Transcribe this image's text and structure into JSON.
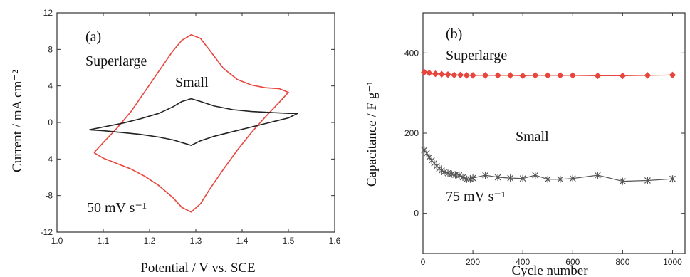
{
  "chart_data": [
    {
      "type": "line",
      "panel_label": "(a)",
      "xlabel": "Potential / V vs. SCE",
      "ylabel": "Current / mA cm⁻²",
      "xlim": [
        1.0,
        1.6
      ],
      "ylim": [
        -12,
        12
      ],
      "xticks": [
        "1.0",
        "1.1",
        "1.2",
        "1.3",
        "1.4",
        "1.5",
        "1.6"
      ],
      "yticks": [
        "-12",
        "-8",
        "-4",
        "0",
        "4",
        "8",
        "12"
      ],
      "grid": false,
      "annotations": {
        "superlarge": "Superlarge",
        "small": "Small",
        "scan_rate": "50 mV s⁻¹"
      },
      "series": [
        {
          "name": "Superlarge",
          "color": "#e8453c",
          "x": [
            1.08,
            1.1,
            1.13,
            1.16,
            1.19,
            1.22,
            1.25,
            1.27,
            1.29,
            1.31,
            1.33,
            1.36,
            1.39,
            1.42,
            1.45,
            1.48,
            1.5,
            1.48,
            1.45,
            1.42,
            1.39,
            1.36,
            1.33,
            1.31,
            1.29,
            1.27,
            1.25,
            1.22,
            1.19,
            1.16,
            1.13,
            1.1,
            1.08
          ],
          "y": [
            -3.3,
            -2.2,
            -0.6,
            1.2,
            3.4,
            5.6,
            7.8,
            9.0,
            9.6,
            9.2,
            7.9,
            5.9,
            4.7,
            4.1,
            3.8,
            3.7,
            3.3,
            2.2,
            0.6,
            -1.1,
            -3.0,
            -5.1,
            -7.3,
            -8.9,
            -9.8,
            -9.3,
            -8.2,
            -6.9,
            -5.9,
            -5.1,
            -4.5,
            -3.9,
            -3.3
          ]
        },
        {
          "name": "Small",
          "color": "#222222",
          "x": [
            1.07,
            1.1,
            1.14,
            1.18,
            1.22,
            1.25,
            1.27,
            1.29,
            1.31,
            1.34,
            1.38,
            1.42,
            1.46,
            1.5,
            1.52,
            1.5,
            1.46,
            1.42,
            1.38,
            1.34,
            1.31,
            1.29,
            1.27,
            1.25,
            1.22,
            1.18,
            1.14,
            1.1,
            1.07
          ],
          "y": [
            -0.8,
            -0.5,
            -0.1,
            0.4,
            1.0,
            1.7,
            2.3,
            2.6,
            2.3,
            1.8,
            1.4,
            1.2,
            1.1,
            1.0,
            1.0,
            0.5,
            0.0,
            -0.5,
            -1.0,
            -1.5,
            -2.0,
            -2.5,
            -2.2,
            -1.9,
            -1.6,
            -1.3,
            -1.1,
            -0.9,
            -0.8
          ]
        }
      ]
    },
    {
      "type": "line",
      "panel_label": "(b)",
      "xlabel": "Cycle number",
      "ylabel": "Capacitance / F g⁻¹",
      "xlim": [
        0,
        1050
      ],
      "ylim": [
        -100,
        500
      ],
      "xticks": [
        "0",
        "200",
        "400",
        "600",
        "800",
        "1000"
      ],
      "yticks": [
        "0",
        "200",
        "400"
      ],
      "grid": false,
      "annotations": {
        "superlarge": "Superlarge",
        "small": "Small",
        "scan_rate": "75 mV s⁻¹"
      },
      "series": [
        {
          "name": "Superlarge",
          "color": "#e8453c",
          "marker": "diamond",
          "x": [
            5,
            25,
            50,
            75,
            100,
            125,
            150,
            175,
            200,
            250,
            300,
            350,
            400,
            450,
            500,
            550,
            600,
            700,
            800,
            900,
            1000
          ],
          "y": [
            352,
            350,
            348,
            347,
            346,
            345,
            345,
            344,
            344,
            344,
            344,
            344,
            343,
            344,
            344,
            344,
            344,
            343,
            343,
            344,
            345
          ]
        },
        {
          "name": "Small",
          "color": "#555555",
          "marker": "asterisk",
          "x": [
            5,
            15,
            25,
            35,
            45,
            55,
            65,
            75,
            85,
            100,
            115,
            130,
            145,
            160,
            175,
            190,
            200,
            250,
            300,
            350,
            400,
            450,
            500,
            550,
            600,
            700,
            800,
            900,
            1000
          ],
          "y": [
            158,
            150,
            140,
            132,
            125,
            118,
            112,
            107,
            103,
            100,
            98,
            96,
            95,
            90,
            85,
            85,
            88,
            95,
            90,
            88,
            87,
            95,
            85,
            85,
            87,
            95,
            80,
            82,
            86
          ]
        }
      ]
    }
  ]
}
